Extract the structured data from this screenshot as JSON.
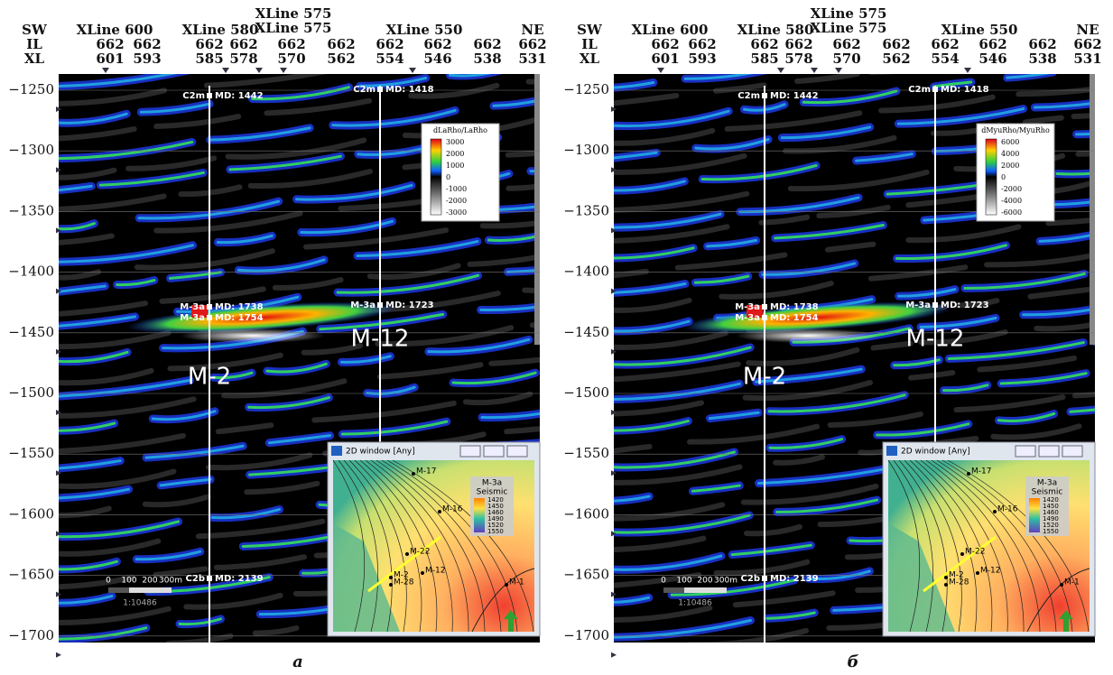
{
  "panels": [
    {
      "header": {
        "row_labels": [
          "SW",
          "IL",
          "XL"
        ],
        "ne": "NE",
        "xlines": [
          "XLine 600",
          "XLine 580",
          "XLine 575",
          "XLine 575",
          "XLine 550"
        ],
        "il": [
          "662",
          "662",
          "662",
          "662",
          "662",
          "662",
          "662",
          "662",
          "662",
          "662"
        ],
        "xl": [
          "601",
          "593",
          "585",
          "578",
          "570",
          "562",
          "554",
          "546",
          "538",
          "531"
        ]
      },
      "yticks": [
        "−1250",
        "−1300",
        "−1350",
        "−1400",
        "−1450",
        "−1500",
        "−1550",
        "−1600",
        "−1650",
        "−1700"
      ],
      "wells": [
        {
          "formation": "C2m",
          "md": "MD: 1442"
        },
        {
          "formation": "C2m",
          "md": "MD: 1418"
        },
        {
          "formation": "M-3a",
          "md": "MD: 1738"
        },
        {
          "formation": "M-3a",
          "md": "MD: 1754"
        },
        {
          "formation": "M-3a",
          "md": "MD: 1723"
        },
        {
          "formation": "C2b",
          "md": "MD: 2139"
        }
      ],
      "well_names": [
        "M-2",
        "M-12"
      ],
      "legend": {
        "title": "dLaRho/LaRho",
        "labels": [
          "3000",
          "2000",
          "1000",
          "0",
          "-1000",
          "-2000",
          "-3000"
        ]
      },
      "scale_bar": {
        "labels": [
          "0",
          "100",
          "200",
          "300m"
        ],
        "ratio": "1:10486"
      },
      "inset": {
        "title": "2D window [Any]",
        "wells": [
          "M-17",
          "M-16",
          "M-22",
          "M-12",
          "M-2",
          "M-28",
          "M-1"
        ],
        "legend_title": [
          "M-3a",
          "Seismic"
        ],
        "legend_labels": [
          "1420",
          "1450",
          "1460",
          "1490",
          "1520",
          "1550"
        ]
      },
      "caption": "a"
    },
    {
      "header": {
        "row_labels": [
          "SW",
          "IL",
          "XL"
        ],
        "ne": "NE",
        "xlines": [
          "XLine 600",
          "XLine 580",
          "XLine 575",
          "XLine 575",
          "XLine 550"
        ],
        "il": [
          "662",
          "662",
          "662",
          "662",
          "662",
          "662",
          "662",
          "662",
          "662",
          "662"
        ],
        "xl": [
          "601",
          "593",
          "585",
          "578",
          "570",
          "562",
          "554",
          "546",
          "538",
          "531"
        ]
      },
      "yticks": [
        "−1250",
        "−1300",
        "−1350",
        "−1400",
        "−1450",
        "−1500",
        "−1550",
        "−1600",
        "−1650",
        "−1700"
      ],
      "wells": [
        {
          "formation": "C2m",
          "md": "MD: 1442"
        },
        {
          "formation": "C2m",
          "md": "MD: 1418"
        },
        {
          "formation": "M-3a",
          "md": "MD: 1738"
        },
        {
          "formation": "M-3a",
          "md": "MD: 1754"
        },
        {
          "formation": "M-3a",
          "md": "MD: 1723"
        },
        {
          "formation": "C2b",
          "md": "MD: 2139"
        }
      ],
      "well_names": [
        "M-2",
        "M-12"
      ],
      "legend": {
        "title": "dMyuRho/MyuRho",
        "labels": [
          "6000",
          "4000",
          "2000",
          "0",
          "-2000",
          "-4000",
          "-6000"
        ]
      },
      "scale_bar": {
        "labels": [
          "0",
          "100",
          "200",
          "300m"
        ],
        "ratio": "1:10486"
      },
      "inset": {
        "title": "2D window [Any]",
        "wells": [
          "M-17",
          "M-16",
          "M-22",
          "M-12",
          "M-2",
          "M-28",
          "M-1"
        ],
        "legend_title": [
          "M-3a",
          "Seismic"
        ],
        "legend_labels": [
          "1420",
          "1450",
          "1460",
          "1490",
          "1520",
          "1550"
        ]
      },
      "caption": "б"
    }
  ]
}
